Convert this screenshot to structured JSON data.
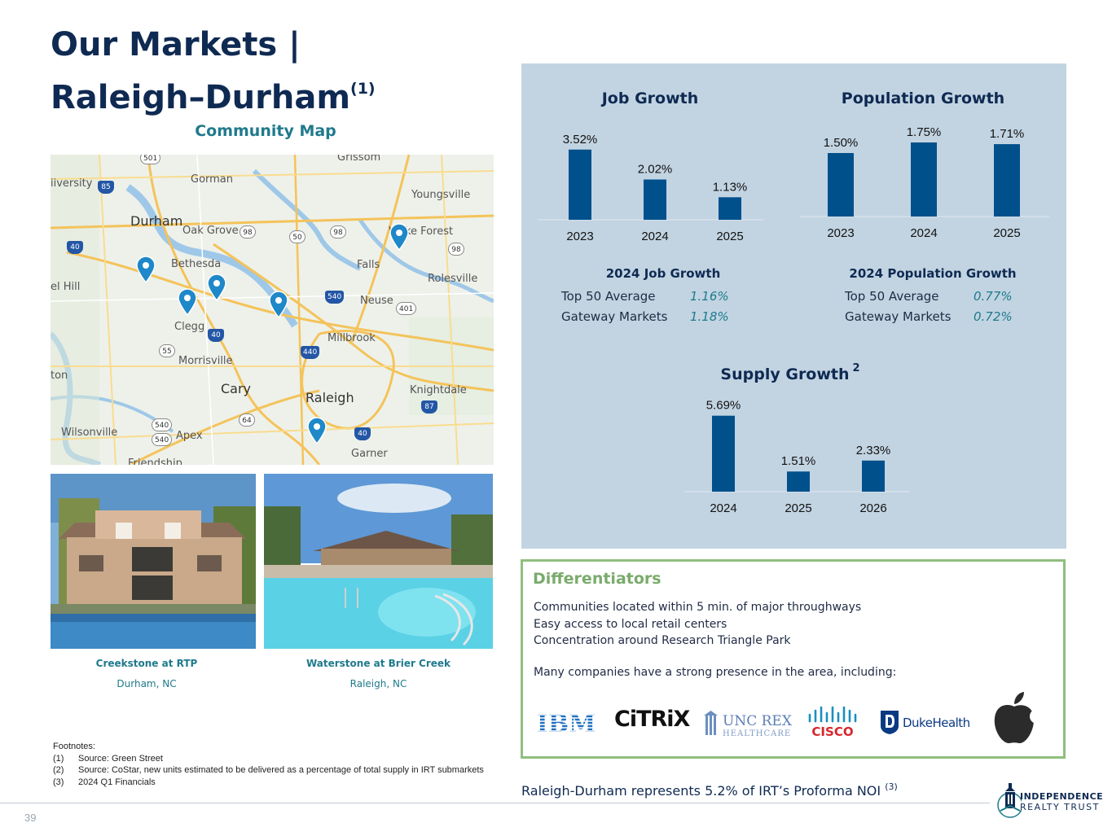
{
  "header": {
    "title_line1": "Our Markets |",
    "title_line2": "Raleigh–Durham",
    "title_sup": "(1)"
  },
  "map": {
    "title": "Community Map",
    "labels": [
      {
        "text": "Durham",
        "big": true
      },
      {
        "text": "Gorman"
      },
      {
        "text": "Grissom"
      },
      {
        "text": "Youngsville"
      },
      {
        "text": "iiversity"
      },
      {
        "text": "Oak Grove"
      },
      {
        "text": "Bethesda"
      },
      {
        "text": "Falls"
      },
      {
        "text": "Wake Forest"
      },
      {
        "text": "Rolesville"
      },
      {
        "text": "el Hill"
      },
      {
        "text": "Neuse"
      },
      {
        "text": "Clegg"
      },
      {
        "text": "Millbrook"
      },
      {
        "text": "Morrisville"
      },
      {
        "text": "Cary",
        "big": true
      },
      {
        "text": "Raleigh",
        "big": true
      },
      {
        "text": "Knightdale"
      },
      {
        "text": "ton"
      },
      {
        "text": "Wilsonville"
      },
      {
        "text": "Apex"
      },
      {
        "text": "Garner"
      },
      {
        "text": "Friendship"
      }
    ],
    "shields": [
      "85",
      "501",
      "98",
      "50",
      "98",
      "98",
      "540",
      "401",
      "40",
      "55",
      "440",
      "64",
      "540",
      "540",
      "40",
      "87",
      "40"
    ]
  },
  "photos": [
    {
      "name": "Creekstone at RTP",
      "location": "Durham, NC"
    },
    {
      "name": "Waterstone at Brier Creek",
      "location": "Raleigh, NC"
    }
  ],
  "footnotes": {
    "heading": "Footnotes:",
    "items": [
      {
        "num": "(1)",
        "text": "Source: Green Street"
      },
      {
        "num": "(2)",
        "text": "Source: CoStar, new units estimated to be delivered as a percentage of total supply in IRT submarkets"
      },
      {
        "num": "(3)",
        "text": "2024 Q1 Financials"
      }
    ]
  },
  "page_number": "39",
  "chart_data": [
    {
      "type": "bar",
      "title": "Job Growth",
      "categories": [
        "2023",
        "2024",
        "2025"
      ],
      "values": [
        3.52,
        2.02,
        1.13
      ],
      "labels": [
        "3.52%",
        "2.02%",
        "1.13%"
      ],
      "unit": "%",
      "color": "#00508c"
    },
    {
      "type": "bar",
      "title": "Population Growth",
      "categories": [
        "2023",
        "2024",
        "2025"
      ],
      "values": [
        1.5,
        1.75,
        1.71
      ],
      "labels": [
        "1.50%",
        "1.75%",
        "1.71%"
      ],
      "unit": "%",
      "color": "#00508c"
    },
    {
      "type": "bar",
      "title": "Supply Growth",
      "title_sup": "2",
      "categories": [
        "2024",
        "2025",
        "2026"
      ],
      "values": [
        5.69,
        1.51,
        2.33
      ],
      "labels": [
        "5.69%",
        "1.51%",
        "2.33%"
      ],
      "unit": "%",
      "color": "#00508c"
    }
  ],
  "job_stats": {
    "heading": "2024 Job Growth",
    "rows": [
      {
        "name": "Top 50 Average",
        "value": "1.16%"
      },
      {
        "name": "Gateway Markets",
        "value": "1.18%"
      }
    ]
  },
  "pop_stats": {
    "heading": "2024 Population Growth",
    "rows": [
      {
        "name": "Top 50 Average",
        "value": "0.77%"
      },
      {
        "name": "Gateway Markets",
        "value": "0.72%"
      }
    ]
  },
  "differentiators": {
    "title": "Differentiators",
    "items": [
      "Communities located within 5 min. of major throughways",
      "Easy access to local retail centers",
      "Concentration around Research Triangle Park"
    ],
    "note": "Many companies have a strong presence in the area, including:",
    "logos": [
      {
        "name": "IBM",
        "text": "IBM"
      },
      {
        "name": "Citrix",
        "text": "CiTRiX"
      },
      {
        "name": "UNC REX Healthcare",
        "line1": "UNC REX",
        "line2": "HEALTHCARE"
      },
      {
        "name": "Cisco",
        "text": "CISCO"
      },
      {
        "name": "Duke Health",
        "text": "DukeHealth"
      },
      {
        "name": "Apple",
        "icon": "apple-icon"
      }
    ]
  },
  "noi_statement": {
    "text": "Raleigh-Durham represents 5.2% of IRT’s Proforma NOI",
    "sup": "(3)"
  },
  "brand": {
    "line1": "INDEPENDENCE",
    "line2": "REALTY TRUST"
  },
  "colors": {
    "navy": "#0f2a52",
    "teal": "#1f7a8c",
    "bar": "#00508c",
    "panel": "#c2d4e2",
    "green": "#8fbf7e"
  }
}
